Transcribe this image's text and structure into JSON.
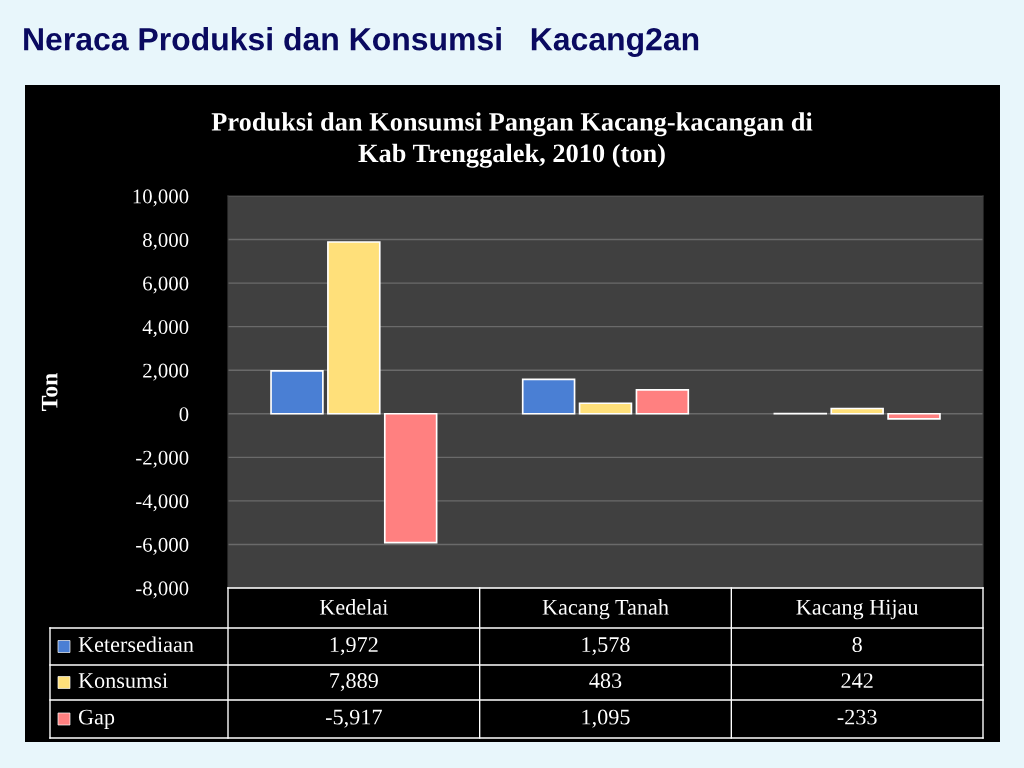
{
  "chart_data": {
    "type": "bar",
    "title": "Neraca Produksi dan Konsumsi   Kacang2an",
    "subtitle": "Produksi dan Konsumsi Pangan Kacang-kacangan di\nKab Trenggalek, 2010 (ton)",
    "ylabel": "Ton",
    "categories": [
      "Kedelai",
      "Kacang Tanah",
      "Kacang Hijau"
    ],
    "series": [
      {
        "name": "Ketersediaan",
        "color": "#4a7fd4",
        "values": [
          1972,
          1578,
          8
        ],
        "value_labels": [
          "1,972",
          "1,578",
          "8"
        ]
      },
      {
        "name": "Konsumsi",
        "color": "#ffe07a",
        "values": [
          7889,
          483,
          242
        ],
        "value_labels": [
          "7,889",
          "483",
          "242"
        ]
      },
      {
        "name": "Gap",
        "color": "#ff8080",
        "values": [
          -5917,
          1095,
          -233
        ],
        "value_labels": [
          "-5,917",
          "1,095",
          "-233"
        ]
      }
    ],
    "ylim": [
      -8000,
      10000
    ],
    "yticks": [
      {
        "value": -8000,
        "label": "-8,000"
      },
      {
        "value": -6000,
        "label": "-6,000"
      },
      {
        "value": -4000,
        "label": "-4,000"
      },
      {
        "value": -2000,
        "label": "-2,000"
      },
      0,
      {
        "value": 2000,
        "label": "2,000"
      },
      {
        "value": 4000,
        "label": "4,000"
      },
      {
        "value": 6000,
        "label": "6,000"
      },
      {
        "value": 8000,
        "label": "8,000"
      },
      {
        "value": 10000,
        "label": "10,000"
      }
    ],
    "grid": "y",
    "legend": "bottom"
  }
}
